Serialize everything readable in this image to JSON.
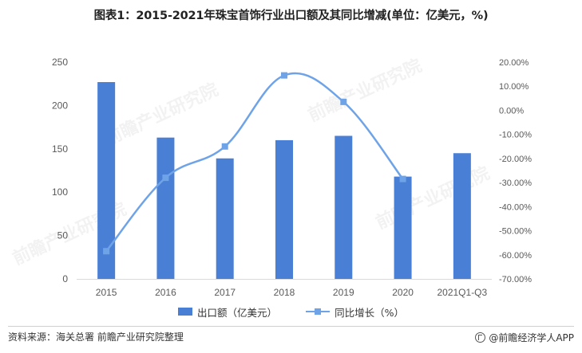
{
  "title": "图表1：2015-2021年珠宝首饰行业出口额及其同比增减(单位：亿美元，%)",
  "colors": {
    "bar": "#4a7fd6",
    "line": "#6fa3e8",
    "axis": "#d9d9d9",
    "text": "#595959"
  },
  "chart_data": {
    "type": "bar+line",
    "categories": [
      "2015",
      "2016",
      "2017",
      "2018",
      "2019",
      "2020",
      "2021Q1-Q3"
    ],
    "series": [
      {
        "name": "出口额（亿美元）",
        "type": "bar",
        "axis": "left",
        "values": [
          227,
          163,
          139,
          160,
          165,
          118,
          145
        ]
      },
      {
        "name": "同比增长（%）",
        "type": "line",
        "axis": "right",
        "values": [
          -58.5,
          -28.0,
          -15.0,
          14.5,
          3.5,
          -28.5,
          null
        ]
      }
    ],
    "y_left": {
      "min": 0,
      "max": 250,
      "ticks": [
        "0",
        "50",
        "100",
        "150",
        "200",
        "250"
      ]
    },
    "y_right": {
      "min": -70,
      "max": 20,
      "ticks": [
        "-70.00%",
        "-60.00%",
        "-50.00%",
        "-40.00%",
        "-30.00%",
        "-20.00%",
        "-10.00%",
        "0.00%",
        "10.00%",
        "20.00%"
      ]
    },
    "legend": {
      "position": "bottom"
    },
    "grid": false
  },
  "legend": {
    "bar_label": "出口额（亿美元）",
    "line_label": "同比增长（%）"
  },
  "watermark": "前瞻产业研究院",
  "footer": {
    "source": "资料来源：海关总署 前瞻产业研究院整理",
    "brand": "@前瞻经济学人APP"
  }
}
